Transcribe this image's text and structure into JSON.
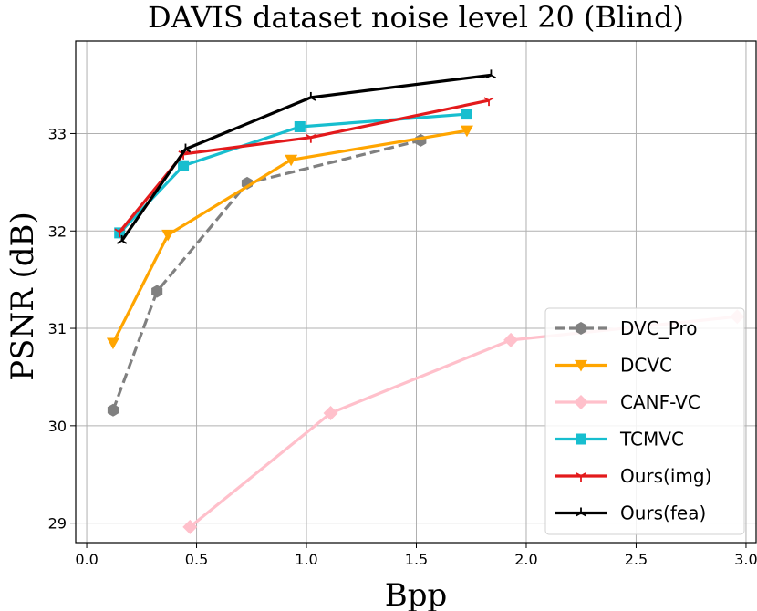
{
  "chart_data": {
    "type": "line",
    "title": "DAVIS dataset noise level 20 (Blind)",
    "xlabel": "Bpp",
    "ylabel": "PSNR (dB)",
    "xlim": [
      -0.05,
      3.05
    ],
    "ylim": [
      28.8,
      33.95
    ],
    "xticks": [
      0.0,
      0.5,
      1.0,
      1.5,
      2.0,
      2.5,
      3.0
    ],
    "xtick_labels": [
      "0.0",
      "0.5",
      "1.0",
      "1.5",
      "2.0",
      "2.5",
      "3.0"
    ],
    "yticks": [
      29,
      30,
      31,
      32,
      33
    ],
    "ytick_labels": [
      "29",
      "30",
      "31",
      "32",
      "33"
    ],
    "grid": true,
    "legend_position": "lower-right",
    "series": [
      {
        "name": "DVC_Pro",
        "color": "#808080",
        "marker": "hexagon",
        "dashed": true,
        "x": [
          0.12,
          0.32,
          0.73,
          1.52
        ],
        "y": [
          30.16,
          31.38,
          32.49,
          32.93
        ]
      },
      {
        "name": "DCVC",
        "color": "#FFA500",
        "marker": "triangle-down",
        "dashed": false,
        "x": [
          0.12,
          0.37,
          0.93,
          1.73
        ],
        "y": [
          30.85,
          31.96,
          32.73,
          33.03
        ]
      },
      {
        "name": "CANF-VC",
        "color": "#FFC0CB",
        "marker": "diamond",
        "dashed": false,
        "x": [
          0.47,
          1.11,
          1.93,
          2.96
        ],
        "y": [
          28.96,
          30.13,
          30.88,
          31.12
        ]
      },
      {
        "name": "TCMVC",
        "color": "#17BECF",
        "marker": "square",
        "dashed": false,
        "x": [
          0.15,
          0.44,
          0.97,
          1.73
        ],
        "y": [
          31.98,
          32.67,
          33.07,
          33.2
        ]
      },
      {
        "name": "Ours(img)",
        "color": "#E31A1C",
        "marker": "tri-down",
        "dashed": false,
        "x": [
          0.15,
          0.44,
          1.02,
          1.83
        ],
        "y": [
          31.99,
          32.79,
          32.96,
          33.34
        ]
      },
      {
        "name": "Ours(fea)",
        "color": "#000000",
        "marker": "tri-up",
        "dashed": false,
        "x": [
          0.16,
          0.45,
          1.02,
          1.84
        ],
        "y": [
          31.9,
          32.84,
          33.37,
          33.6
        ]
      }
    ]
  }
}
